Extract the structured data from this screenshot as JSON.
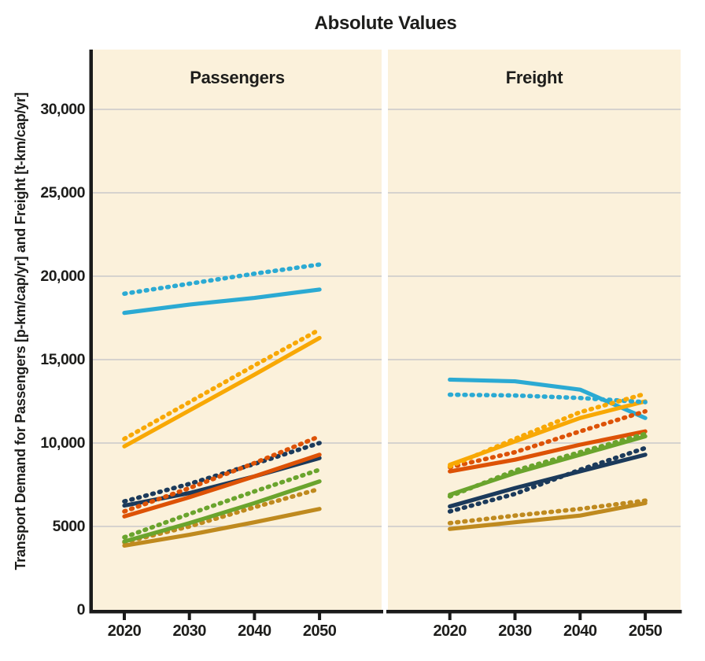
{
  "chart_data": {
    "type": "line",
    "title": "Absolute Values",
    "ylabel": "Transport Demand for Passengers [p-km/cap/yr] and Freight [t-km/cap/yr]",
    "xlabel": "",
    "x": [
      2020,
      2030,
      2040,
      2050
    ],
    "xtick_labels": [
      "2020",
      "2030",
      "2040",
      "2050"
    ],
    "yticks": [
      {
        "value": 0,
        "label": "0"
      },
      {
        "value": 5000,
        "label": "5000"
      },
      {
        "value": 10000,
        "label": "10,000"
      },
      {
        "value": 15000,
        "label": "15,000"
      },
      {
        "value": 20000,
        "label": "20,000"
      },
      {
        "value": 25000,
        "label": "25,000"
      },
      {
        "value": 30000,
        "label": "30,000"
      }
    ],
    "ylim": [
      0,
      33500
    ],
    "grid": "horizontal",
    "legend": "none",
    "colors": {
      "cyan": "#2BAAD3",
      "amber": "#F8A804",
      "navy": "#1B3A5B",
      "vermillion": "#DD5206",
      "green": "#6AA42D",
      "ochre": "#BF8A1F",
      "background_panel": "#FBF1DB",
      "gridline": "#C9C9C9",
      "axis": "#1A1A1A"
    },
    "panels": [
      {
        "label": "Passengers",
        "series": [
          {
            "id": "cyan-solid",
            "color": "cyan",
            "style": "solid",
            "values": [
              17800,
              18300,
              18700,
              19200
            ]
          },
          {
            "id": "cyan-dotted",
            "color": "cyan",
            "style": "dotted",
            "values": [
              18950,
              19550,
              20150,
              20700
            ]
          },
          {
            "id": "amber-solid",
            "color": "amber",
            "style": "solid",
            "values": [
              9800,
              11950,
              14100,
              16300
            ]
          },
          {
            "id": "amber-dotted",
            "color": "amber",
            "style": "dotted",
            "values": [
              10250,
              12450,
              14650,
              16800
            ]
          },
          {
            "id": "navy-solid",
            "color": "navy",
            "style": "solid",
            "values": [
              6250,
              7000,
              8000,
              9100
            ]
          },
          {
            "id": "navy-dotted",
            "color": "navy",
            "style": "dotted",
            "values": [
              6500,
              7550,
              8750,
              10000
            ]
          },
          {
            "id": "vermillion-solid",
            "color": "vermillion",
            "style": "solid",
            "values": [
              5600,
              6750,
              8000,
              9300
            ]
          },
          {
            "id": "vermillion-dotted",
            "color": "vermillion",
            "style": "dotted",
            "values": [
              5900,
              7300,
              8800,
              10400
            ]
          },
          {
            "id": "green-solid",
            "color": "green",
            "style": "solid",
            "values": [
              4100,
              5200,
              6400,
              7700
            ]
          },
          {
            "id": "green-dotted",
            "color": "green",
            "style": "dotted",
            "values": [
              4350,
              5750,
              7100,
              8400
            ]
          },
          {
            "id": "ochre-solid",
            "color": "ochre",
            "style": "solid",
            "values": [
              3850,
              4500,
              5250,
              6050
            ]
          },
          {
            "id": "ochre-dotted",
            "color": "ochre",
            "style": "dotted",
            "values": [
              4050,
              5000,
              6150,
              7250
            ]
          }
        ]
      },
      {
        "label": "Freight",
        "series": [
          {
            "id": "cyan-solid",
            "color": "cyan",
            "style": "solid",
            "values": [
              13800,
              13700,
              13200,
              11500
            ]
          },
          {
            "id": "cyan-dotted",
            "color": "cyan",
            "style": "dotted",
            "values": [
              12900,
              12850,
              12700,
              12450
            ]
          },
          {
            "id": "amber-solid",
            "color": "amber",
            "style": "solid",
            "values": [
              8700,
              10100,
              11500,
              12500
            ]
          },
          {
            "id": "amber-dotted",
            "color": "amber",
            "style": "dotted",
            "values": [
              8600,
              10250,
              11850,
              12950
            ]
          },
          {
            "id": "navy-solid",
            "color": "navy",
            "style": "solid",
            "values": [
              6200,
              7300,
              8300,
              9300
            ]
          },
          {
            "id": "navy-dotted",
            "color": "navy",
            "style": "dotted",
            "values": [
              5900,
              6950,
              8400,
              9700
            ]
          },
          {
            "id": "vermillion-solid",
            "color": "vermillion",
            "style": "solid",
            "values": [
              8300,
              9000,
              9900,
              10700
            ]
          },
          {
            "id": "vermillion-dotted",
            "color": "vermillion",
            "style": "dotted",
            "values": [
              8550,
              9450,
              10700,
              11900
            ]
          },
          {
            "id": "green-solid",
            "color": "green",
            "style": "solid",
            "values": [
              6900,
              8200,
              9300,
              10400
            ]
          },
          {
            "id": "green-dotted",
            "color": "green",
            "style": "dotted",
            "values": [
              6800,
              8350,
              9450,
              10550
            ]
          },
          {
            "id": "ochre-solid",
            "color": "ochre",
            "style": "solid",
            "values": [
              4850,
              5250,
              5650,
              6400
            ]
          },
          {
            "id": "ochre-dotted",
            "color": "ochre",
            "style": "dotted",
            "values": [
              5200,
              5650,
              6050,
              6550
            ]
          }
        ]
      }
    ]
  }
}
